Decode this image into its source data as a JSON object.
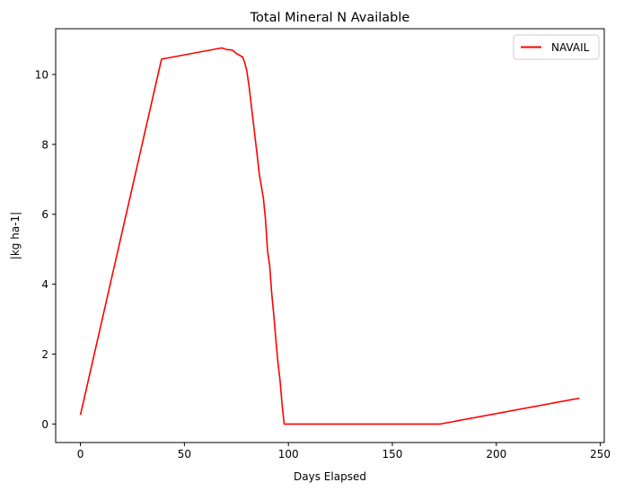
{
  "chart_data": {
    "type": "line",
    "title": "Total Mineral N Available",
    "xlabel": "Days Elapsed",
    "ylabel": "|kg ha-1|",
    "xlim": [
      -11.9,
      251.9
    ],
    "ylim": [
      -0.53,
      11.31
    ],
    "xticks": [
      0,
      50,
      100,
      150,
      200,
      250
    ],
    "yticks": [
      0,
      2,
      4,
      6,
      8,
      10
    ],
    "grid": false,
    "legend_position": "top-right",
    "series": [
      {
        "name": "NAVAIL",
        "color": "#ff0000",
        "x": [
          0,
          39,
          68,
          70,
          73,
          75,
          78,
          79,
          80,
          81,
          82,
          83,
          84,
          85,
          86,
          87,
          88,
          89,
          90,
          91,
          92,
          93,
          94,
          95,
          96,
          97,
          98,
          99,
          100,
          101,
          102,
          103,
          104,
          173,
          240
        ],
        "y": [
          0.26,
          10.44,
          10.76,
          10.72,
          10.7,
          10.6,
          10.5,
          10.35,
          10.1,
          9.7,
          9.2,
          8.7,
          8.2,
          7.7,
          7.15,
          6.8,
          6.45,
          5.85,
          4.95,
          4.55,
          3.75,
          3.1,
          2.4,
          1.75,
          1.25,
          0.55,
          0.0,
          0.0,
          0.0,
          0.0,
          0.0,
          0.0,
          0.0,
          0.0,
          0.74
        ]
      }
    ]
  }
}
